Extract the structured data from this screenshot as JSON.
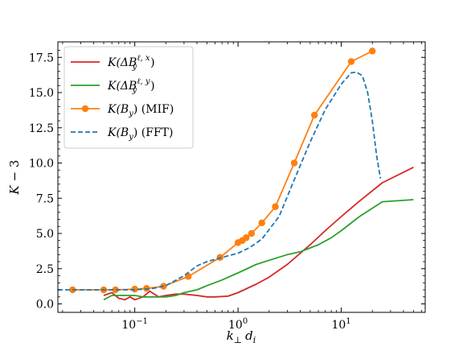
{
  "chart_data": {
    "type": "line",
    "title": "",
    "xlabel": "k⊥ d_i",
    "ylabel": "K − 3",
    "xscale": "log",
    "xlim": [
      0.018,
      65
    ],
    "ylim": [
      -0.6,
      18.6
    ],
    "x_ticks": [
      {
        "value": 0.1,
        "label_base": "10",
        "label_exp": "−1"
      },
      {
        "value": 1,
        "label_base": "10",
        "label_exp": "0"
      },
      {
        "value": 10,
        "label_base": "10",
        "label_exp": "1"
      }
    ],
    "y_ticks": [
      {
        "value": 0,
        "label": "0.0"
      },
      {
        "value": 2.5,
        "label": "2.5"
      },
      {
        "value": 5,
        "label": "5.0"
      },
      {
        "value": 7.5,
        "label": "7.5"
      },
      {
        "value": 10,
        "label": "10.0"
      },
      {
        "value": 12.5,
        "label": "12.5"
      },
      {
        "value": 15,
        "label": "15.0"
      },
      {
        "value": 17.5,
        "label": "17.5"
      }
    ],
    "legend_position": "top-left",
    "grid": false,
    "series": [
      {
        "name": "K(ΔB_y^{ℓ,x})",
        "legend": {
          "main": "K(ΔB",
          "sub": "y",
          "sup": "ℓ, x",
          "tail": ")"
        },
        "color": "#d62728",
        "dash": "solid",
        "marker": "none",
        "x": [
          0.05,
          0.06,
          0.07,
          0.08,
          0.09,
          0.1,
          0.12,
          0.14,
          0.17,
          0.2,
          0.25,
          0.3,
          0.4,
          0.5,
          0.6,
          0.8,
          1.0,
          1.5,
          2,
          3,
          5,
          7,
          10,
          15,
          25,
          50
        ],
        "y": [
          0.6,
          0.8,
          0.4,
          0.3,
          0.5,
          0.3,
          0.5,
          0.9,
          0.5,
          0.6,
          0.7,
          0.7,
          0.6,
          0.5,
          0.5,
          0.55,
          0.8,
          1.4,
          1.9,
          2.8,
          4.2,
          5.2,
          6.2,
          7.3,
          8.6,
          9.7
        ]
      },
      {
        "name": "K(ΔB_y^{ℓ,y})",
        "legend": {
          "main": "K(ΔB",
          "sub": "y",
          "sup": "ℓ, y",
          "tail": ")"
        },
        "color": "#2ca02c",
        "dash": "solid",
        "marker": "none",
        "x": [
          0.05,
          0.06,
          0.08,
          0.1,
          0.12,
          0.15,
          0.2,
          0.25,
          0.3,
          0.4,
          0.5,
          0.7,
          1.0,
          1.5,
          2,
          3,
          4,
          6,
          8,
          10,
          15,
          25,
          50
        ],
        "y": [
          0.3,
          0.6,
          0.6,
          0.6,
          0.5,
          0.5,
          0.5,
          0.6,
          0.8,
          1.0,
          1.3,
          1.7,
          2.2,
          2.8,
          3.1,
          3.5,
          3.7,
          4.2,
          4.7,
          5.2,
          6.2,
          7.25,
          7.4
        ]
      },
      {
        "name": "K(B_y) (MIF)",
        "legend": {
          "main": "K(B",
          "sub": "y",
          "sup": "",
          "tail": ") (MIF)"
        },
        "color": "#ff7f0e",
        "dash": "solid",
        "marker": "circle",
        "x": [
          0.025,
          0.05,
          0.065,
          0.1,
          0.13,
          0.19,
          0.33,
          0.67,
          1.0,
          1.1,
          1.2,
          1.35,
          1.7,
          2.3,
          3.5,
          5.5,
          12.5,
          20
        ],
        "y": [
          1.0,
          1.0,
          1.0,
          1.05,
          1.1,
          1.25,
          1.95,
          3.3,
          4.35,
          4.5,
          4.7,
          5.0,
          5.75,
          6.9,
          10.0,
          13.4,
          17.2,
          17.95
        ]
      },
      {
        "name": "K(B_y) (FFT)",
        "legend": {
          "main": "K(B",
          "sub": "y",
          "sup": "",
          "tail": ") (FFT)"
        },
        "color": "#1f77b4",
        "dash": "dashed",
        "marker": "none",
        "x": [
          0.018,
          0.05,
          0.1,
          0.15,
          0.2,
          0.3,
          0.4,
          0.5,
          0.7,
          1.0,
          1.3,
          1.7,
          2.5,
          3.5,
          5,
          7,
          10,
          12.5,
          14,
          16,
          18,
          20,
          22,
          24
        ],
        "y": [
          1.0,
          1.0,
          1.0,
          1.1,
          1.3,
          2.0,
          2.7,
          3.0,
          3.3,
          3.6,
          4.0,
          4.6,
          6.2,
          8.8,
          11.5,
          13.8,
          15.6,
          16.4,
          16.45,
          16.2,
          15.0,
          13.0,
          10.5,
          8.9
        ]
      }
    ]
  }
}
